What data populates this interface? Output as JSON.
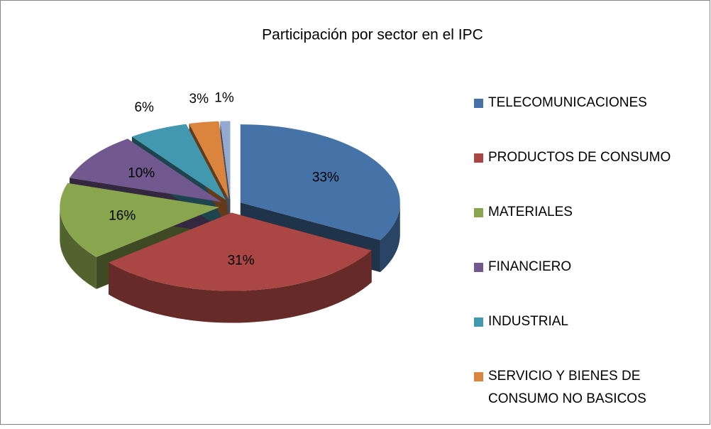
{
  "chart_data": {
    "type": "pie3d",
    "title": "Participación por sector en el IPC",
    "categories": [
      "TELECOMUNICACIONES",
      "PRODUCTOS DE CONSUMO",
      "MATERIALES",
      "FINANCIERO",
      "INDUSTRIAL",
      "SERVICIO Y BIENES DE CONSUMO NO BASICOS",
      null
    ],
    "values": [
      33,
      31,
      16,
      10,
      6,
      3,
      1
    ],
    "value_labels": [
      "33%",
      "31%",
      "16%",
      "10%",
      "6%",
      "3%",
      "1%"
    ],
    "colors": [
      "#4572a7",
      "#aa4643",
      "#89a54e",
      "#71588f",
      "#4198af",
      "#db843d",
      "#93a9cf"
    ],
    "legend": "right"
  }
}
